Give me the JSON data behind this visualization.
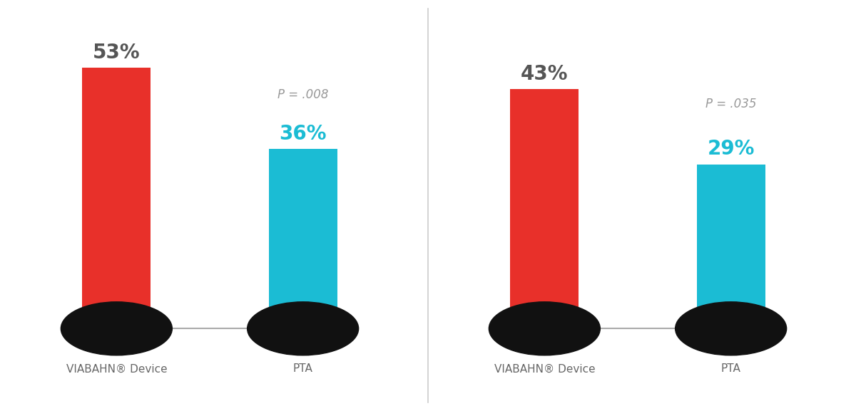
{
  "charts": [
    {
      "viabahn_val": 53,
      "pta_val": 36,
      "p_value": "P = .008"
    },
    {
      "viabahn_val": 43,
      "pta_val": 29,
      "p_value": "P = .035"
    }
  ],
  "red_color": "#E8302A",
  "cyan_color": "#1BBCD4",
  "black_circle_color": "#111111",
  "gray_line_color": "#AAAAAA",
  "p_value_color": "#999999",
  "bar_label_color": "#555555",
  "xlabel_color": "#666666",
  "bar_width": 0.55,
  "viabahn_label": "VIABAHN® Device",
  "pta_label": "PTA",
  "background_color": "#FFFFFF",
  "divider_color": "#CCCCCC"
}
